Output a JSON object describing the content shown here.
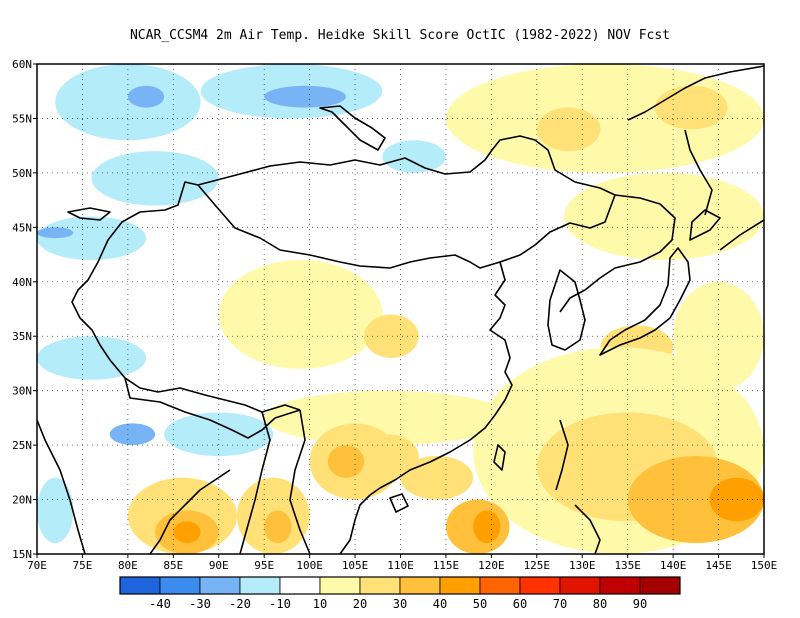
{
  "title": "NCAR_CCSM4  2m Air Temp. Heidke Skill Score OctIC (1982-2022) NOV Fcst",
  "map": {
    "lon_ticks": [
      "70E",
      "75E",
      "80E",
      "85E",
      "90E",
      "95E",
      "100E",
      "105E",
      "110E",
      "115E",
      "120E",
      "125E",
      "130E",
      "135E",
      "140E",
      "145E",
      "150E"
    ],
    "lat_ticks": [
      "60N",
      "55N",
      "50N",
      "45N",
      "40N",
      "35N",
      "30N",
      "25N",
      "20N",
      "15N"
    ],
    "lon_range": [
      70,
      150
    ],
    "lat_range": [
      15,
      60
    ],
    "grid": "dotted"
  },
  "colorbar": {
    "colors": [
      "#1f64dc",
      "#3c8cf0",
      "#78b4f5",
      "#b4ecfa",
      "#ffffff",
      "#fffaaa",
      "#ffe178",
      "#ffc03c",
      "#ffa000",
      "#ff6400",
      "#ff3200",
      "#e11400",
      "#c00000",
      "#a50000"
    ],
    "labels": [
      "-40",
      "-30",
      "-20",
      "-10",
      "10",
      "20",
      "30",
      "40",
      "50",
      "60",
      "70",
      "80",
      "90"
    ]
  },
  "field_colors": {
    "white": "#ffffff",
    "lightyellow": "#fffaaa",
    "yellow": "#ffe178",
    "orange": "#ffc03c",
    "darkorange": "#ffa000",
    "lightblue": "#b4ecfa",
    "blue": "#78b4f5"
  }
}
